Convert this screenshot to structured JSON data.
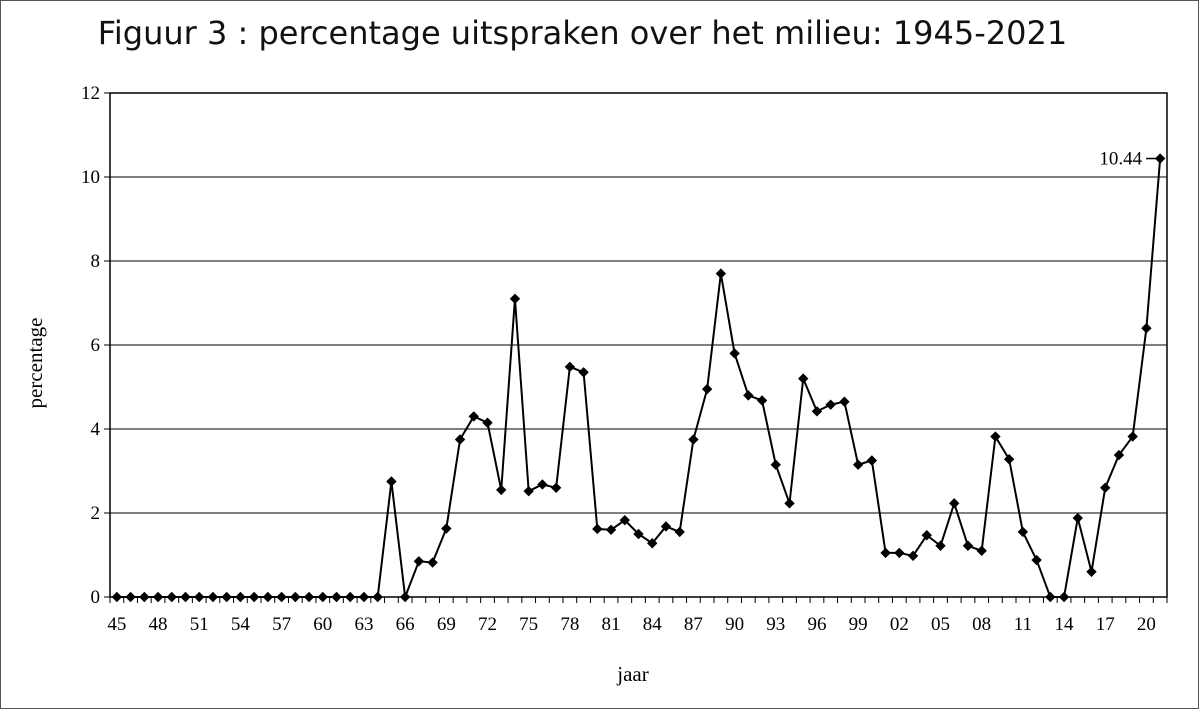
{
  "chart_data": {
    "type": "line",
    "title": "Figuur 3 : percentage uitspraken over het milieu: 1945-2021",
    "xlabel": "jaar",
    "ylabel": "percentage",
    "ylim": [
      0,
      12
    ],
    "yticks": [
      0,
      2,
      4,
      6,
      8,
      10,
      12
    ],
    "grid": true,
    "x": [
      "45",
      "46",
      "47",
      "48",
      "49",
      "50",
      "51",
      "52",
      "53",
      "54",
      "55",
      "56",
      "57",
      "58",
      "59",
      "60",
      "61",
      "62",
      "63",
      "64",
      "65",
      "66",
      "67",
      "68",
      "69",
      "70",
      "71",
      "72",
      "73",
      "74",
      "75",
      "76",
      "77",
      "78",
      "79",
      "80",
      "81",
      "82",
      "83",
      "84",
      "85",
      "86",
      "87",
      "88",
      "89",
      "90",
      "91",
      "92",
      "93",
      "94",
      "95",
      "96",
      "97",
      "98",
      "99",
      "00",
      "01",
      "02",
      "03",
      "04",
      "05",
      "06",
      "07",
      "08",
      "09",
      "10",
      "11",
      "12",
      "13",
      "14",
      "15",
      "16",
      "17",
      "18",
      "19",
      "20",
      "21"
    ],
    "xtick_labels": [
      "45",
      "48",
      "51",
      "54",
      "57",
      "60",
      "63",
      "66",
      "69",
      "72",
      "75",
      "78",
      "81",
      "84",
      "87",
      "90",
      "93",
      "96",
      "99",
      "02",
      "05",
      "08",
      "11",
      "14",
      "17",
      "20"
    ],
    "series": [
      {
        "values": [
          0,
          0,
          0,
          0,
          0,
          0,
          0,
          0,
          0,
          0,
          0,
          0,
          0,
          0,
          0,
          0,
          0,
          0,
          0,
          0,
          2.75,
          0,
          0.85,
          0.82,
          1.63,
          3.75,
          4.3,
          4.15,
          2.55,
          7.1,
          2.52,
          2.68,
          2.6,
          5.48,
          5.35,
          1.62,
          1.6,
          1.83,
          1.5,
          1.28,
          1.68,
          1.55,
          3.75,
          4.95,
          7.7,
          5.8,
          4.8,
          4.68,
          3.15,
          2.23,
          5.2,
          4.42,
          4.58,
          4.65,
          3.15,
          3.25,
          1.05,
          1.05,
          0.98,
          1.47,
          1.22,
          2.23,
          1.22,
          1.1,
          3.82,
          3.28,
          1.55,
          0.88,
          0,
          0,
          1.88,
          0.6,
          2.6,
          3.38,
          3.82,
          6.4,
          10.44
        ],
        "color": "#000000"
      }
    ],
    "annotations": [
      {
        "x": "21",
        "y": 10.44,
        "text": "10.44"
      }
    ]
  }
}
